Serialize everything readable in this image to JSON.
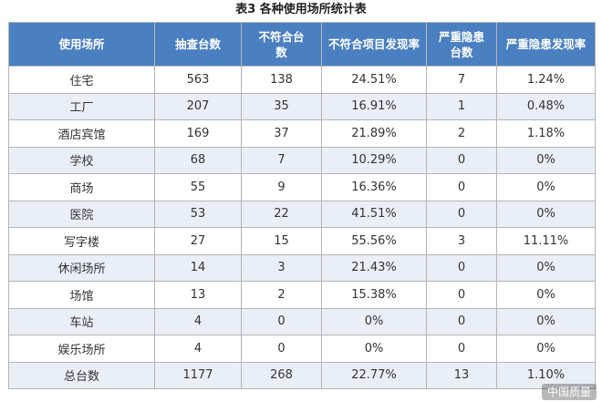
{
  "caption": "表3  各种使用场所统计表",
  "headers": [
    "使用场所",
    "抽查台数",
    "不符合台数",
    "不符合项目发现率",
    "严重隐患台数",
    "严重隐患发现率"
  ],
  "rows": [
    [
      "住宅",
      "563",
      "138",
      "24.51%",
      "7",
      "1.24%"
    ],
    [
      "工厂",
      "207",
      "35",
      "16.91%",
      "1",
      "0.48%"
    ],
    [
      "酒店宾馆",
      "169",
      "37",
      "21.89%",
      "2",
      "1.18%"
    ],
    [
      "学校",
      "68",
      "7",
      "10.29%",
      "0",
      "0%"
    ],
    [
      "商场",
      "55",
      "9",
      "16.36%",
      "0",
      "0%"
    ],
    [
      "医院",
      "53",
      "22",
      "41.51%",
      "0",
      "0%"
    ],
    [
      "写字楼",
      "27",
      "15",
      "55.56%",
      "3",
      "11.11%"
    ],
    [
      "休闲场所",
      "14",
      "3",
      "21.43%",
      "0",
      "0%"
    ],
    [
      "场馆",
      "13",
      "2",
      "15.38%",
      "0",
      "0%"
    ],
    [
      "车站",
      "4",
      "0",
      "0%",
      "0",
      "0%"
    ],
    [
      "娱乐场所",
      "4",
      "0",
      "0%",
      "0",
      "0%"
    ],
    [
      "总台数",
      "1177",
      "268",
      "22.77%",
      "13",
      "1.10%"
    ]
  ],
  "watermark": "中国质量"
}
